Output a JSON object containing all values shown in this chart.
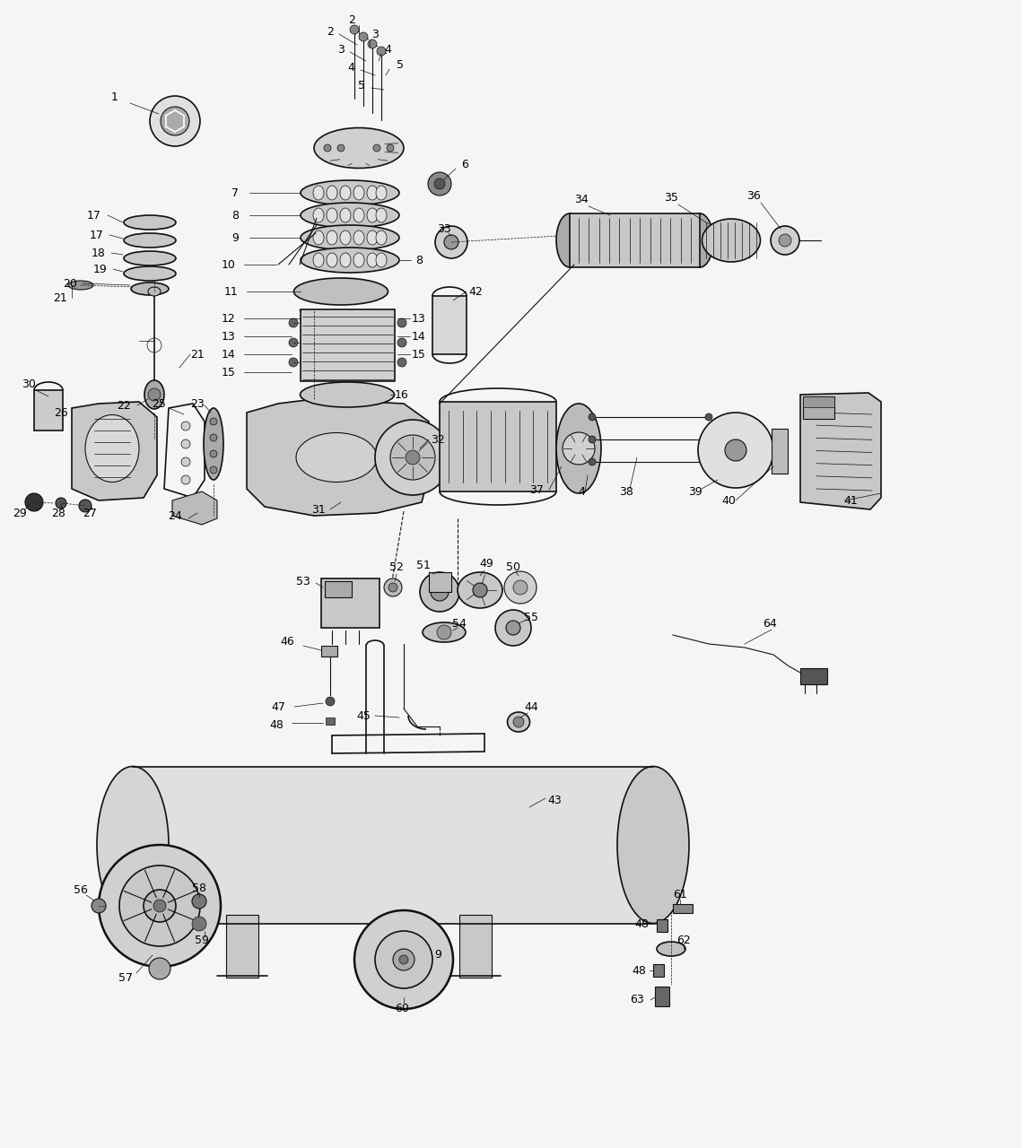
{
  "bg_color": "#f5f5f5",
  "line_color": "#111111",
  "text_color": "#000000",
  "fig_width": 11.38,
  "fig_height": 12.8,
  "dpi": 100
}
